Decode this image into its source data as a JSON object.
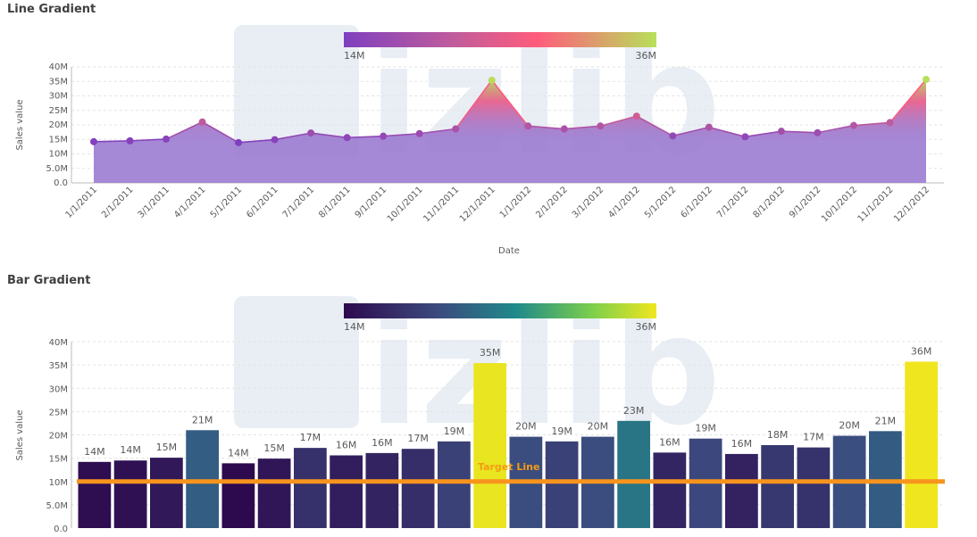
{
  "colors": {
    "line_gradient": [
      "#7f3fbf",
      "#c05c9c",
      "#ff5c7c",
      "#b7e05a"
    ],
    "bar_gradient": [
      "#2d0a4e",
      "#3c4a7e",
      "#1f8a8a",
      "#7fd04a",
      "#f0e61f"
    ],
    "target": "#f7941d",
    "area": "#9b7bd1",
    "watermark": "#e9eef5"
  },
  "watermark": "vizlib",
  "panels": [
    {
      "title": "Line Gradient",
      "legend": {
        "min_label": "14M",
        "max_label": "36M"
      },
      "chart_data": {
        "type": "area",
        "xlabel": "Date",
        "ylabel": "Sales value",
        "ylim": [
          0,
          40
        ],
        "yticks": [
          "0.0",
          "5.0M",
          "10M",
          "15M",
          "20M",
          "25M",
          "30M",
          "35M",
          "40M"
        ],
        "categories": [
          "1/1/2011",
          "2/1/2011",
          "3/1/2011",
          "4/1/2011",
          "5/1/2011",
          "6/1/2011",
          "7/1/2011",
          "8/1/2011",
          "9/1/2011",
          "10/1/2011",
          "11/1/2011",
          "12/1/2011",
          "1/1/2012",
          "2/1/2012",
          "3/1/2012",
          "4/1/2012",
          "5/1/2012",
          "6/1/2012",
          "7/1/2012",
          "8/1/2012",
          "9/1/2012",
          "10/1/2012",
          "11/1/2012",
          "12/1/2012"
        ],
        "values": [
          14.2,
          14.5,
          15.1,
          21.0,
          13.9,
          14.9,
          17.2,
          15.6,
          16.1,
          17.0,
          18.6,
          35.4,
          19.6,
          18.6,
          19.6,
          23.0,
          16.2,
          19.2,
          15.9,
          17.8,
          17.3,
          19.8,
          20.8,
          35.7
        ]
      }
    },
    {
      "title": "Bar Gradient",
      "legend": {
        "min_label": "14M",
        "max_label": "36M"
      },
      "target_label": "Target Line",
      "chart_data": {
        "type": "bar",
        "ylabel": "Sales value",
        "ylim": [
          0,
          40
        ],
        "yticks": [
          "0.0",
          "5.0M",
          "10M",
          "15M",
          "20M",
          "25M",
          "30M",
          "35M",
          "40M"
        ],
        "values": [
          14.2,
          14.5,
          15.1,
          21.0,
          13.9,
          14.9,
          17.2,
          15.6,
          16.1,
          17.0,
          18.6,
          35.4,
          19.6,
          18.6,
          19.6,
          23.0,
          16.2,
          19.2,
          15.9,
          17.8,
          17.3,
          19.8,
          20.8,
          35.7
        ],
        "data_labels": [
          "14M",
          "14M",
          "15M",
          "21M",
          "14M",
          "15M",
          "17M",
          "16M",
          "16M",
          "17M",
          "19M",
          "35M",
          "20M",
          "19M",
          "20M",
          "23M",
          "16M",
          "19M",
          "16M",
          "18M",
          "17M",
          "20M",
          "21M",
          "36M"
        ],
        "target_value": 10
      }
    }
  ]
}
